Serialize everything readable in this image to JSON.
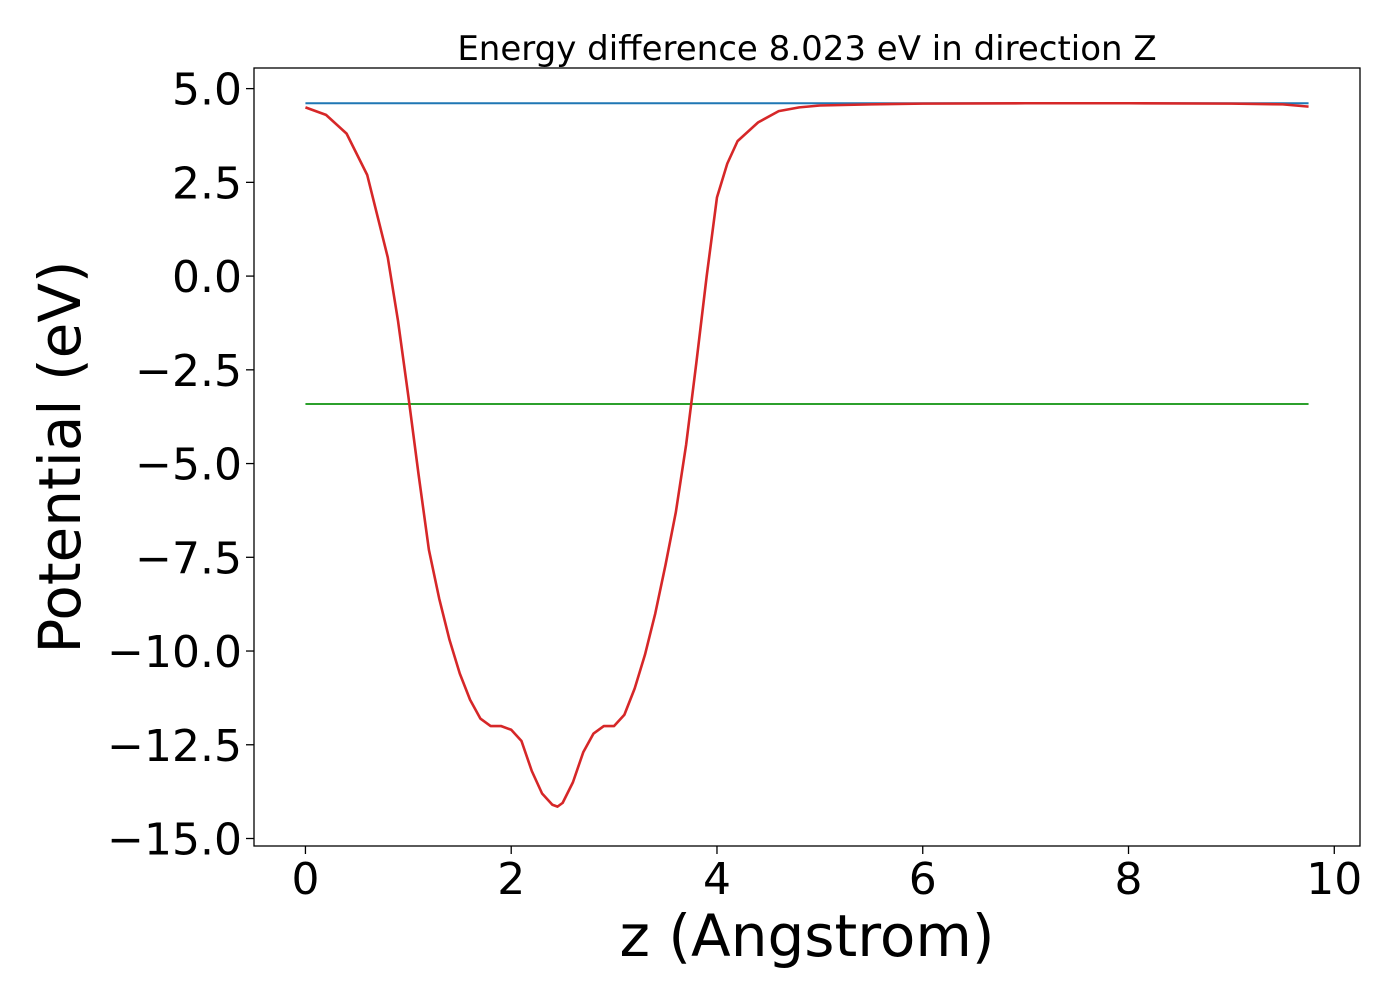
{
  "chart_data": {
    "type": "line",
    "title": "Energy difference 8.023 eV in direction Z",
    "xlabel": "z (Angstrom)",
    "ylabel": "Potential (eV)",
    "xlim": [
      -0.5,
      10.25
    ],
    "ylim": [
      -15.2,
      5.55
    ],
    "grid": false,
    "legend": "none",
    "x_ticks": [
      {
        "value": 0,
        "label": "0"
      },
      {
        "value": 2,
        "label": "2"
      },
      {
        "value": 4,
        "label": "4"
      },
      {
        "value": 6,
        "label": "6"
      },
      {
        "value": 8,
        "label": "8"
      },
      {
        "value": 10,
        "label": "10"
      }
    ],
    "y_ticks": [
      {
        "value": 5.0,
        "label": "5.0"
      },
      {
        "value": 2.5,
        "label": "2.5"
      },
      {
        "value": 0.0,
        "label": "0.0"
      },
      {
        "value": -2.5,
        "label": "−2.5"
      },
      {
        "value": -5.0,
        "label": "−5.0"
      },
      {
        "value": -7.5,
        "label": "−7.5"
      },
      {
        "value": -10.0,
        "label": "−10.0"
      },
      {
        "value": -12.5,
        "label": "−12.5"
      },
      {
        "value": -15.0,
        "label": "−15.0"
      }
    ],
    "series": [
      {
        "color": "#1f77b4",
        "x": [
          0,
          9.75
        ],
        "y": [
          4.61,
          4.61
        ]
      },
      {
        "color": "#2ca02c",
        "x": [
          0,
          9.75
        ],
        "y": [
          -3.41,
          -3.41
        ]
      },
      {
        "color": "#d62728",
        "x": [
          0,
          0.2,
          0.4,
          0.6,
          0.8,
          0.9,
          1.0,
          1.1,
          1.2,
          1.3,
          1.4,
          1.5,
          1.6,
          1.7,
          1.8,
          1.9,
          2.0,
          2.1,
          2.2,
          2.3,
          2.4,
          2.45,
          2.5,
          2.6,
          2.7,
          2.8,
          2.9,
          3.0,
          3.1,
          3.2,
          3.3,
          3.4,
          3.5,
          3.6,
          3.7,
          3.8,
          3.9,
          4.0,
          4.1,
          4.2,
          4.4,
          4.6,
          4.8,
          5.0,
          5.5,
          6.0,
          7.0,
          8.0,
          9.0,
          9.5,
          9.75
        ],
        "y": [
          4.5,
          4.3,
          3.8,
          2.7,
          0.5,
          -1.2,
          -3.2,
          -5.3,
          -7.3,
          -8.6,
          -9.7,
          -10.6,
          -11.3,
          -11.8,
          -12.0,
          -12.0,
          -12.1,
          -12.4,
          -13.2,
          -13.8,
          -14.1,
          -14.15,
          -14.05,
          -13.5,
          -12.7,
          -12.2,
          -12.0,
          -12.0,
          -11.7,
          -11.0,
          -10.1,
          -9.0,
          -7.7,
          -6.3,
          -4.5,
          -2.3,
          0.0,
          2.1,
          3.0,
          3.6,
          4.1,
          4.4,
          4.5,
          4.55,
          4.58,
          4.6,
          4.61,
          4.61,
          4.6,
          4.58,
          4.52
        ]
      }
    ]
  }
}
